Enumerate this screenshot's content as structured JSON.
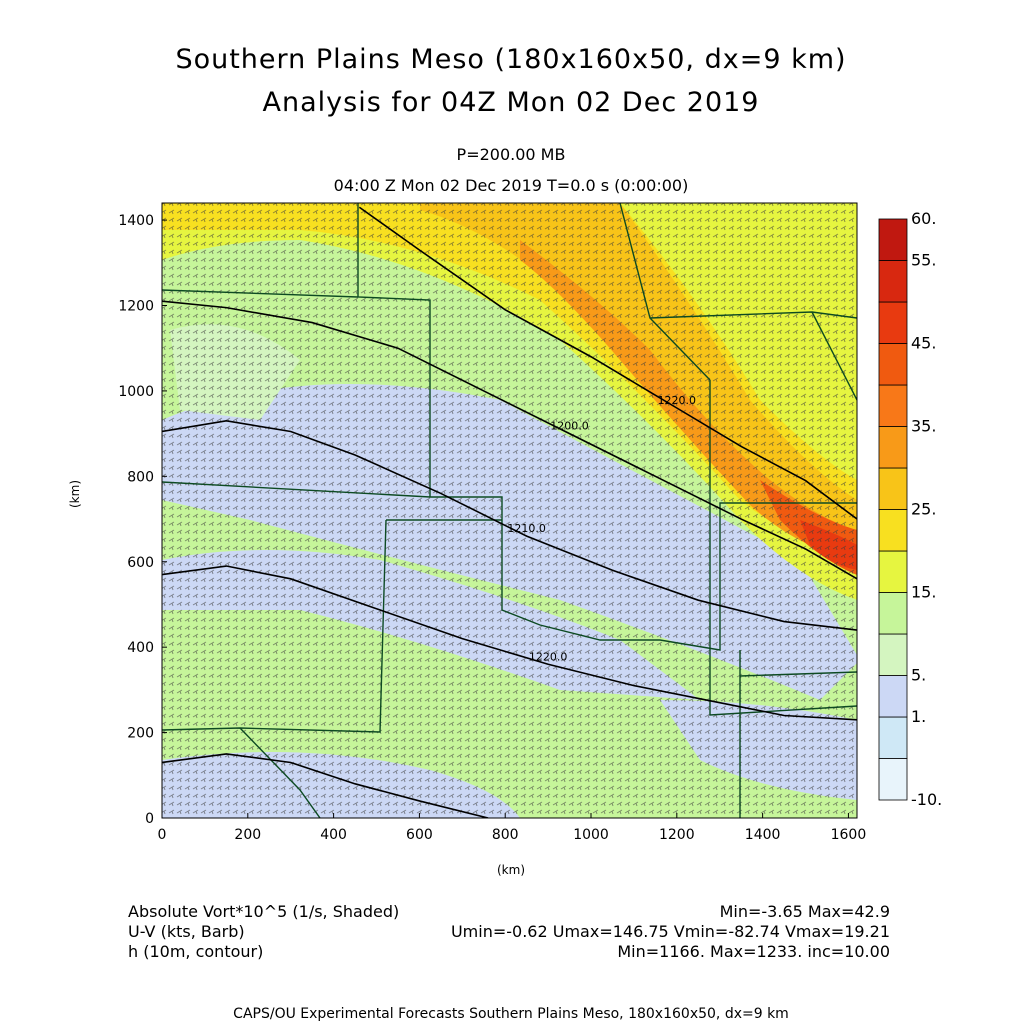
{
  "header": {
    "title_line1": "Southern Plains Meso (180x160x50, dx=9 km)",
    "title_line2": "Analysis for 04Z Mon 02 Dec 2019",
    "level": "P=200.00 MB",
    "time": "04:00 Z Mon 02 Dec 2019    T=0.0 s (0:00:00)"
  },
  "footer": {
    "field1_name": "Absolute Vort*10^5 (1/s, Shaded)",
    "field1_stats": "Min=-3.65 Max=42.9",
    "field2_name": "U-V (kts, Barb)",
    "field2_stats": "Umin=-0.62 Umax=146.75 Vmin=-82.74 Vmax=19.21",
    "field3_name": "h (10m, contour)",
    "field3_stats": "Min=1166. Max=1233. inc=10.00",
    "credit": "CAPS/OU Experimental Forecasts  Southern Plains Meso, 180x160x50, dx=9 km"
  },
  "chart_data": {
    "type": "heatmap",
    "xlabel": "(km)",
    "ylabel": "(km)",
    "xlim": [
      0,
      1620
    ],
    "ylim": [
      0,
      1440
    ],
    "x_ticks": [
      0,
      200,
      400,
      600,
      800,
      1000,
      1200,
      1400,
      1600
    ],
    "y_ticks": [
      0,
      200,
      400,
      600,
      800,
      1000,
      1200,
      1400
    ],
    "colorbar": {
      "levels": [
        -10,
        0,
        1,
        5,
        10,
        15,
        20,
        25,
        30,
        35,
        40,
        45,
        50,
        55,
        60
      ],
      "colors": [
        "#e8f4fb",
        "#cfe8f6",
        "#ccd8f5",
        "#d4f5c0",
        "#c6f59a",
        "#e6f540",
        "#f8e020",
        "#f8c418",
        "#f89a18",
        "#f87818",
        "#f05a10",
        "#e83a10",
        "#d82810",
        "#c01810"
      ],
      "labels": [
        {
          "value": -10,
          "text": "-10."
        },
        {
          "value": 1,
          "text": "1."
        },
        {
          "value": 5,
          "text": "5."
        },
        {
          "value": 15,
          "text": "15."
        },
        {
          "value": 25,
          "text": "25."
        },
        {
          "value": 35,
          "text": "35."
        },
        {
          "value": 45,
          "text": "45."
        },
        {
          "value": 55,
          "text": "55."
        },
        {
          "value": 60,
          "text": "60."
        }
      ]
    },
    "contours": [
      {
        "label": "1200.0",
        "points": [
          [
            0,
            1210
          ],
          [
            150,
            1195
          ],
          [
            350,
            1160
          ],
          [
            550,
            1100
          ],
          [
            750,
            1000
          ],
          [
            950,
            900
          ],
          [
            1150,
            800
          ],
          [
            1350,
            700
          ],
          [
            1500,
            630
          ],
          [
            1620,
            560
          ]
        ]
      },
      {
        "label": "1210.0",
        "points": [
          [
            0,
            905
          ],
          [
            150,
            930
          ],
          [
            300,
            905
          ],
          [
            450,
            850
          ],
          [
            650,
            760
          ],
          [
            850,
            660
          ],
          [
            1050,
            580
          ],
          [
            1250,
            510
          ],
          [
            1450,
            460
          ],
          [
            1620,
            440
          ]
        ]
      },
      {
        "label": "1220.0",
        "points": [
          [
            0,
            570
          ],
          [
            150,
            590
          ],
          [
            300,
            560
          ],
          [
            500,
            490
          ],
          [
            700,
            420
          ],
          [
            900,
            360
          ],
          [
            1100,
            310
          ],
          [
            1300,
            270
          ],
          [
            1450,
            240
          ],
          [
            1620,
            230
          ]
        ]
      },
      {
        "label": "1220.0",
        "points": [
          [
            460,
            1430
          ],
          [
            600,
            1330
          ],
          [
            800,
            1190
          ],
          [
            1000,
            1080
          ],
          [
            1200,
            960
          ],
          [
            1350,
            870
          ],
          [
            1500,
            790
          ],
          [
            1620,
            700
          ]
        ]
      },
      {
        "label": "",
        "points": [
          [
            0,
            130
          ],
          [
            150,
            150
          ],
          [
            300,
            130
          ],
          [
            450,
            80
          ],
          [
            600,
            40
          ],
          [
            760,
            0
          ]
        ]
      }
    ],
    "annotations": [
      "1200.0",
      "1210.0",
      "1220.0",
      "1220.0"
    ]
  }
}
